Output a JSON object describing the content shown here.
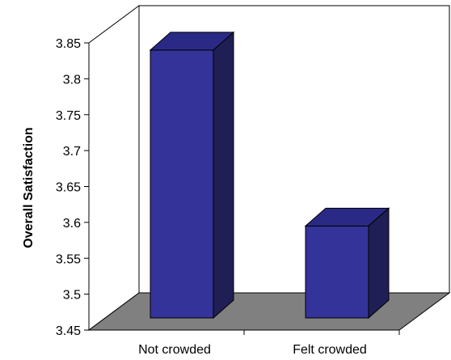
{
  "chart_data": {
    "type": "bar",
    "style": "3d-column",
    "categories": [
      "Not crowded",
      "Felt crowded"
    ],
    "values": [
      3.84,
      3.595
    ],
    "title": "",
    "xlabel": "",
    "ylabel": "Overall Satisfaction",
    "ylim": [
      3.45,
      3.85
    ],
    "yticks": [
      "3.45",
      "3.5",
      "3.55",
      "3.6",
      "3.65",
      "3.7",
      "3.75",
      "3.8",
      "3.85"
    ],
    "grid": false,
    "legend": "none",
    "colors": {
      "bar_front": "#333399",
      "bar_top": "#2a2a86",
      "bar_side": "#1f1f55",
      "floor": "#808080",
      "frame": "#000000"
    }
  }
}
